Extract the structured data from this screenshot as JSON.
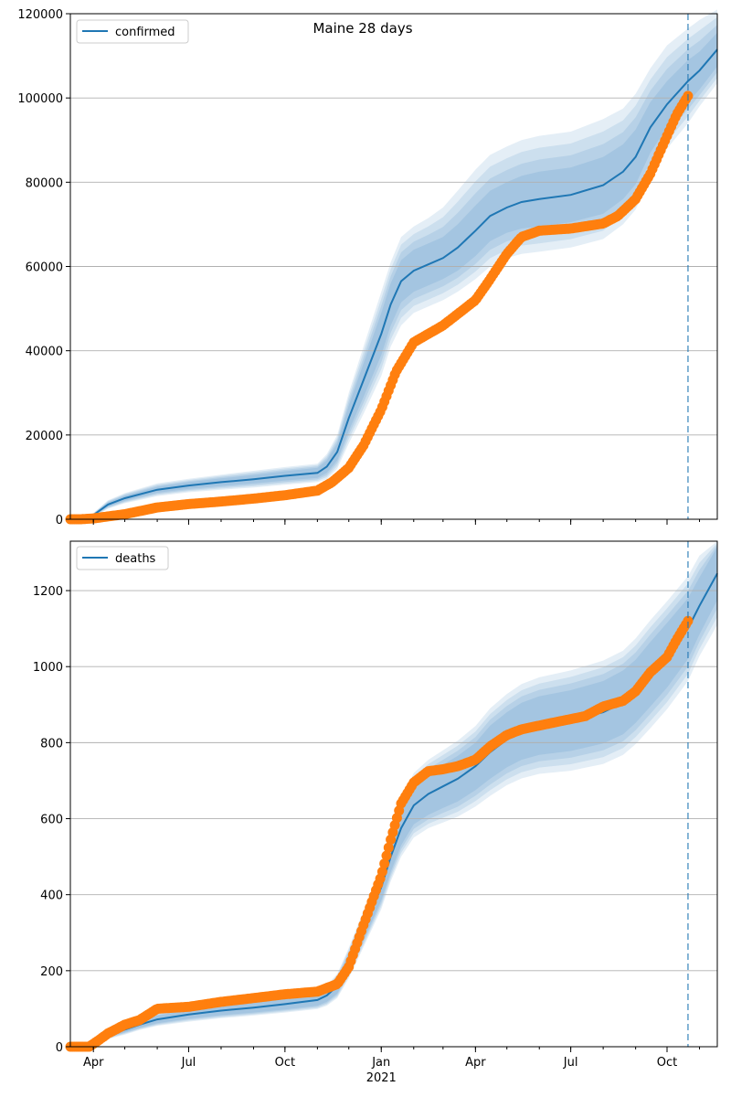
{
  "figure": {
    "title": "Maine 28 days"
  },
  "chart_data": [
    {
      "type": "line",
      "legend": "confirmed",
      "legend_placement": "top-left",
      "ylim": [
        0,
        120000
      ],
      "yticks": [
        0,
        20000,
        40000,
        60000,
        80000,
        100000,
        120000
      ],
      "grid": "y",
      "xlim": [
        "2020-03-10",
        "2021-11-18"
      ],
      "vline": "2021-10-21",
      "forecast": {
        "x": [
          "2020-03-10",
          "2020-03-22",
          "2020-04-01",
          "2020-04-15",
          "2020-05-01",
          "2020-06-01",
          "2020-07-01",
          "2020-08-01",
          "2020-09-01",
          "2020-10-01",
          "2020-11-01",
          "2020-11-10",
          "2020-11-20",
          "2020-12-01",
          "2020-12-15",
          "2021-01-01",
          "2021-01-10",
          "2021-01-20",
          "2021-02-01",
          "2021-02-15",
          "2021-03-01",
          "2021-03-15",
          "2021-04-01",
          "2021-04-15",
          "2021-05-01",
          "2021-05-15",
          "2021-06-01",
          "2021-07-01",
          "2021-08-01",
          "2021-08-20",
          "2021-09-01",
          "2021-09-15",
          "2021-10-01",
          "2021-10-21",
          "2021-11-01",
          "2021-11-18"
        ],
        "median": [
          0,
          0,
          1000,
          3500,
          5000,
          7000,
          8000,
          8800,
          9500,
          10300,
          11000,
          12500,
          16000,
          24000,
          33000,
          44000,
          51000,
          56500,
          59000,
          60500,
          62000,
          64500,
          68500,
          72000,
          74000,
          75300,
          76000,
          77000,
          79300,
          82500,
          86000,
          93000,
          98500,
          104000,
          106500,
          111500
        ],
        "band_50": [
          [
            0,
            0
          ],
          [
            0,
            0
          ],
          [
            800,
            1200
          ],
          [
            3000,
            4000
          ],
          [
            4400,
            5600
          ],
          [
            6300,
            7700
          ],
          [
            7200,
            8800
          ],
          [
            7900,
            9700
          ],
          [
            8500,
            10500
          ],
          [
            9200,
            11400
          ],
          [
            9800,
            12200
          ],
          [
            11000,
            14000
          ],
          [
            14000,
            18000
          ],
          [
            21000,
            27000
          ],
          [
            29000,
            37000
          ],
          [
            39000,
            49000
          ],
          [
            46000,
            56000
          ],
          [
            51500,
            61500
          ],
          [
            54000,
            64000
          ],
          [
            55500,
            65500
          ],
          [
            57000,
            67000
          ],
          [
            59000,
            70000
          ],
          [
            62500,
            74500
          ],
          [
            66000,
            78000
          ],
          [
            68000,
            80000
          ],
          [
            69000,
            81500
          ],
          [
            69500,
            82500
          ],
          [
            70500,
            83500
          ],
          [
            72500,
            86000
          ],
          [
            76000,
            89000
          ],
          [
            79500,
            92500
          ],
          [
            87000,
            99000
          ],
          [
            93000,
            104000
          ],
          [
            99000,
            109000
          ],
          [
            102000,
            111000
          ],
          [
            107500,
            115500
          ]
        ],
        "band_95": [
          [
            0,
            0
          ],
          [
            0,
            0
          ],
          [
            500,
            1500
          ],
          [
            2500,
            4500
          ],
          [
            3800,
            6200
          ],
          [
            5500,
            8500
          ],
          [
            6400,
            9600
          ],
          [
            7000,
            10600
          ],
          [
            7500,
            11500
          ],
          [
            8200,
            12400
          ],
          [
            8800,
            13200
          ],
          [
            9500,
            15500
          ],
          [
            12000,
            20000
          ],
          [
            18000,
            30000
          ],
          [
            25000,
            41000
          ],
          [
            34000,
            54000
          ],
          [
            41000,
            61000
          ],
          [
            46000,
            67000
          ],
          [
            49000,
            69500
          ],
          [
            50500,
            71500
          ],
          [
            52000,
            74000
          ],
          [
            54000,
            78000
          ],
          [
            57000,
            83000
          ],
          [
            60000,
            86500
          ],
          [
            62000,
            88500
          ],
          [
            63000,
            90000
          ],
          [
            63500,
            91000
          ],
          [
            64500,
            92000
          ],
          [
            66500,
            95000
          ],
          [
            70000,
            97500
          ],
          [
            73500,
            101000
          ],
          [
            81000,
            107000
          ],
          [
            88000,
            112500
          ],
          [
            94000,
            116500
          ],
          [
            98000,
            118500
          ],
          [
            103500,
            121000
          ]
        ]
      },
      "observed": {
        "x": [
          "2020-03-10",
          "2020-03-20",
          "2020-04-01",
          "2020-05-01",
          "2020-06-01",
          "2020-07-01",
          "2020-08-01",
          "2020-09-01",
          "2020-10-01",
          "2020-11-01",
          "2020-11-15",
          "2020-12-01",
          "2020-12-15",
          "2021-01-01",
          "2021-01-15",
          "2021-02-01",
          "2021-03-01",
          "2021-04-01",
          "2021-04-15",
          "2021-05-01",
          "2021-05-15",
          "2021-06-01",
          "2021-07-01",
          "2021-08-01",
          "2021-08-15",
          "2021-09-01",
          "2021-09-15",
          "2021-10-01",
          "2021-10-10",
          "2021-10-21"
        ],
        "y": [
          0,
          0,
          200,
          1200,
          2800,
          3600,
          4200,
          4900,
          5700,
          6800,
          8800,
          12200,
          17500,
          26000,
          35000,
          42000,
          46000,
          52000,
          57000,
          63000,
          67000,
          68500,
          69000,
          70200,
          72000,
          76000,
          82000,
          91000,
          96000,
          100500
        ]
      }
    },
    {
      "type": "line",
      "legend": "deaths",
      "legend_placement": "top-left",
      "ylim": [
        0,
        1330
      ],
      "yticks": [
        0,
        200,
        400,
        600,
        800,
        1000,
        1200
      ],
      "grid": "y",
      "xlim": [
        "2020-03-10",
        "2021-11-18"
      ],
      "xticks": [
        {
          "date": "2020-04-01",
          "label": "Apr"
        },
        {
          "date": "2020-07-01",
          "label": "Jul"
        },
        {
          "date": "2020-10-01",
          "label": "Oct"
        },
        {
          "date": "2021-01-01",
          "label": "Jan"
        },
        {
          "date": "2021-04-01",
          "label": "Apr"
        },
        {
          "date": "2021-07-01",
          "label": "Jul"
        },
        {
          "date": "2021-10-01",
          "label": "Oct"
        }
      ],
      "year_label": {
        "date": "2021-01-01",
        "label": "2021"
      },
      "vline": "2021-10-21",
      "forecast": {
        "x": [
          "2020-03-10",
          "2020-03-25",
          "2020-04-01",
          "2020-04-15",
          "2020-05-01",
          "2020-05-15",
          "2020-06-01",
          "2020-07-01",
          "2020-08-01",
          "2020-09-01",
          "2020-10-01",
          "2020-11-01",
          "2020-11-10",
          "2020-11-20",
          "2020-12-01",
          "2020-12-15",
          "2021-01-01",
          "2021-01-10",
          "2021-01-20",
          "2021-02-01",
          "2021-02-15",
          "2021-03-01",
          "2021-03-15",
          "2021-04-01",
          "2021-04-15",
          "2021-05-01",
          "2021-05-15",
          "2021-06-01",
          "2021-07-01",
          "2021-08-01",
          "2021-08-20",
          "2021-09-01",
          "2021-09-15",
          "2021-10-01",
          "2021-10-21",
          "2021-11-01",
          "2021-11-18"
        ],
        "median": [
          0,
          0,
          10,
          30,
          45,
          58,
          72,
          85,
          95,
          103,
          112,
          123,
          135,
          160,
          220,
          310,
          420,
          500,
          575,
          635,
          665,
          685,
          705,
          738,
          775,
          808,
          830,
          845,
          858,
          880,
          905,
          935,
          980,
          1030,
          1100,
          1160,
          1245
        ],
        "band_50": [
          [
            0,
            0
          ],
          [
            0,
            0
          ],
          [
            6,
            14
          ],
          [
            25,
            35
          ],
          [
            38,
            52
          ],
          [
            50,
            66
          ],
          [
            62,
            82
          ],
          [
            74,
            96
          ],
          [
            83,
            107
          ],
          [
            90,
            116
          ],
          [
            98,
            126
          ],
          [
            108,
            138
          ],
          [
            118,
            152
          ],
          [
            140,
            180
          ],
          [
            195,
            245
          ],
          [
            280,
            340
          ],
          [
            385,
            455
          ],
          [
            460,
            540
          ],
          [
            530,
            620
          ],
          [
            585,
            685
          ],
          [
            610,
            720
          ],
          [
            628,
            742
          ],
          [
            645,
            765
          ],
          [
            675,
            800
          ],
          [
            705,
            845
          ],
          [
            735,
            880
          ],
          [
            755,
            905
          ],
          [
            768,
            922
          ],
          [
            778,
            938
          ],
          [
            798,
            962
          ],
          [
            822,
            990
          ],
          [
            852,
            1018
          ],
          [
            895,
            1065
          ],
          [
            945,
            1115
          ],
          [
            1020,
            1180
          ],
          [
            1085,
            1235
          ],
          [
            1175,
            1315
          ]
        ],
        "band_95": [
          [
            0,
            0
          ],
          [
            0,
            0
          ],
          [
            3,
            17
          ],
          [
            20,
            40
          ],
          [
            32,
            58
          ],
          [
            44,
            72
          ],
          [
            55,
            89
          ],
          [
            66,
            104
          ],
          [
            75,
            115
          ],
          [
            82,
            124
          ],
          [
            90,
            134
          ],
          [
            99,
            147
          ],
          [
            108,
            162
          ],
          [
            128,
            192
          ],
          [
            180,
            260
          ],
          [
            262,
            358
          ],
          [
            362,
            478
          ],
          [
            435,
            565
          ],
          [
            500,
            650
          ],
          [
            550,
            720
          ],
          [
            575,
            755
          ],
          [
            590,
            780
          ],
          [
            605,
            805
          ],
          [
            632,
            844
          ],
          [
            660,
            890
          ],
          [
            688,
            928
          ],
          [
            706,
            954
          ],
          [
            718,
            972
          ],
          [
            726,
            990
          ],
          [
            744,
            1016
          ],
          [
            768,
            1042
          ],
          [
            796,
            1074
          ],
          [
            838,
            1122
          ],
          [
            888,
            1172
          ],
          [
            962,
            1238
          ],
          [
            1028,
            1292
          ],
          [
            1110,
            1330
          ]
        ]
      },
      "observed": {
        "x": [
          "2020-03-10",
          "2020-03-28",
          "2020-04-05",
          "2020-04-15",
          "2020-05-01",
          "2020-05-15",
          "2020-06-01",
          "2020-07-01",
          "2020-08-01",
          "2020-09-01",
          "2020-10-01",
          "2020-11-01",
          "2020-11-20",
          "2020-12-01",
          "2020-12-15",
          "2021-01-01",
          "2021-01-10",
          "2021-01-20",
          "2021-02-01",
          "2021-02-15",
          "2021-03-01",
          "2021-03-15",
          "2021-04-01",
          "2021-04-15",
          "2021-05-01",
          "2021-05-15",
          "2021-06-01",
          "2021-07-01",
          "2021-07-15",
          "2021-08-01",
          "2021-08-20",
          "2021-09-01",
          "2021-09-15",
          "2021-10-01",
          "2021-10-10",
          "2021-10-21"
        ],
        "y": [
          0,
          0,
          15,
          35,
          58,
          70,
          100,
          105,
          118,
          128,
          138,
          145,
          165,
          210,
          320,
          450,
          545,
          640,
          695,
          725,
          730,
          738,
          755,
          790,
          820,
          835,
          845,
          862,
          870,
          895,
          910,
          935,
          985,
          1025,
          1070,
          1120
        ]
      }
    }
  ]
}
